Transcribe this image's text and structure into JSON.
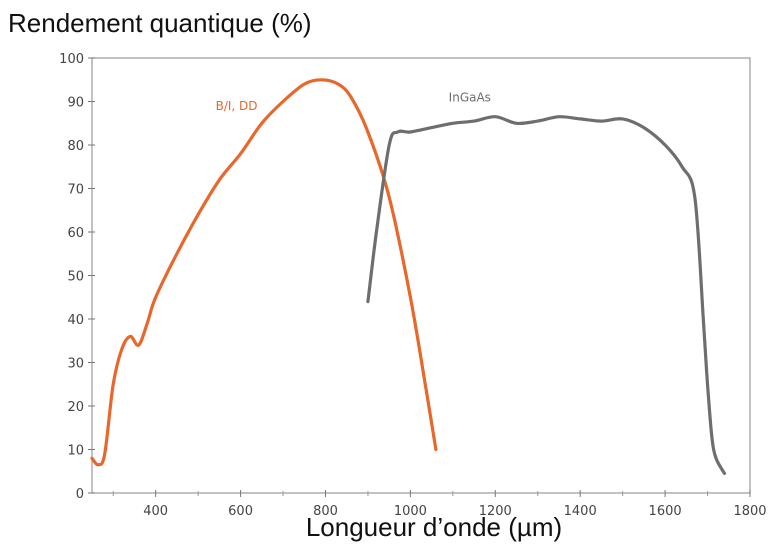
{
  "chart_data": {
    "type": "line",
    "title": "",
    "ylabel": "Rendement quantique (%)",
    "xlabel": "Longueur d’onde (µm)",
    "xlim": [
      250,
      1800
    ],
    "ylim": [
      0,
      100
    ],
    "x_ticks": [
      400,
      600,
      800,
      1000,
      1200,
      1400,
      1600,
      1800
    ],
    "y_ticks": [
      0,
      10,
      20,
      30,
      40,
      50,
      60,
      70,
      80,
      90,
      100
    ],
    "x_tick_labels": [
      "400",
      "600",
      "800",
      "1000",
      "1200",
      "1400",
      "1600",
      "1800"
    ],
    "y_tick_labels": [
      "0",
      "10",
      "20",
      "30",
      "40",
      "50",
      "60",
      "70",
      "80",
      "90",
      "100"
    ],
    "grid": false,
    "legend": "inline labels",
    "series": [
      {
        "name": "B/I, DD",
        "color": "#e8672a",
        "x": [
          250,
          265,
          280,
          300,
          320,
          340,
          360,
          380,
          400,
          450,
          500,
          550,
          600,
          650,
          700,
          750,
          790,
          830,
          860,
          900,
          950,
          1000,
          1040,
          1060
        ],
        "y": [
          8,
          6.5,
          9,
          25,
          33,
          36,
          34,
          39,
          45,
          55,
          64,
          72,
          78,
          85,
          90,
          94,
          95,
          94,
          91,
          83,
          68,
          45,
          22,
          10
        ]
      },
      {
        "name": "InGaAs",
        "color": "#6e6e6e",
        "x": [
          900,
          920,
          950,
          970,
          1000,
          1050,
          1100,
          1150,
          1200,
          1250,
          1300,
          1350,
          1400,
          1450,
          1500,
          1550,
          1600,
          1640,
          1670,
          1690,
          1700,
          1710,
          1720,
          1740
        ],
        "y": [
          44,
          60,
          80,
          83,
          83,
          84,
          85,
          85.5,
          86.5,
          85,
          85.5,
          86.5,
          86,
          85.5,
          86,
          84,
          80,
          75,
          68,
          40,
          25,
          13,
          8,
          4.5
        ]
      }
    ]
  }
}
